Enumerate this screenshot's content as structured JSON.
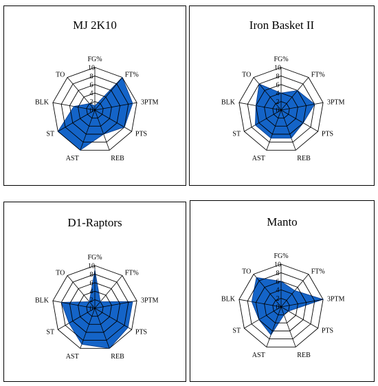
{
  "chart_data": [
    {
      "type": "radar",
      "title": "MJ 2K10",
      "axes": [
        "FG%",
        "FT%",
        "3PTM",
        "PTS",
        "REB",
        "AST",
        "ST",
        "BLK",
        "TO"
      ],
      "ticks": [
        "0",
        "2",
        "4",
        "6",
        "8",
        "10"
      ],
      "rmax": 10,
      "values": [
        1,
        10,
        9,
        8,
        6,
        10,
        10,
        5,
        2
      ],
      "fill_color": "#1464c8"
    },
    {
      "type": "radar",
      "title": "Iron Basket II",
      "axes": [
        "FG%",
        "FT%",
        "3PTM",
        "PTS",
        "REB",
        "AST",
        "ST",
        "BLK",
        "TO"
      ],
      "ticks": [
        "0",
        "2",
        "4",
        "6",
        "8",
        "10"
      ],
      "rmax": 10,
      "values": [
        4,
        6,
        8,
        6,
        7,
        7,
        7,
        6,
        8
      ],
      "fill_color": "#1464c8"
    },
    {
      "type": "radar",
      "title": "D1-Raptors",
      "axes": [
        "FG%",
        "FT%",
        "3PTM",
        "PTS",
        "REB",
        "AST",
        "ST",
        "BLK",
        "TO"
      ],
      "ticks": [
        "0",
        "2",
        "4",
        "6",
        "8",
        "10"
      ],
      "rmax": 10,
      "values": [
        9,
        2,
        9,
        9,
        10,
        9,
        7,
        8,
        2
      ],
      "fill_color": "#1464c8"
    },
    {
      "type": "radar",
      "title": "Manto",
      "axes": [
        "FG%",
        "FT%",
        "3PTM",
        "PTS",
        "REB",
        "AST",
        "ST",
        "BLK",
        "TO"
      ],
      "ticks": [
        "0",
        "2",
        "4",
        "6",
        "8",
        "10"
      ],
      "rmax": 10,
      "values": [
        6,
        5,
        10,
        2,
        2,
        7,
        6,
        7,
        9
      ],
      "fill_color": "#1464c8"
    }
  ]
}
